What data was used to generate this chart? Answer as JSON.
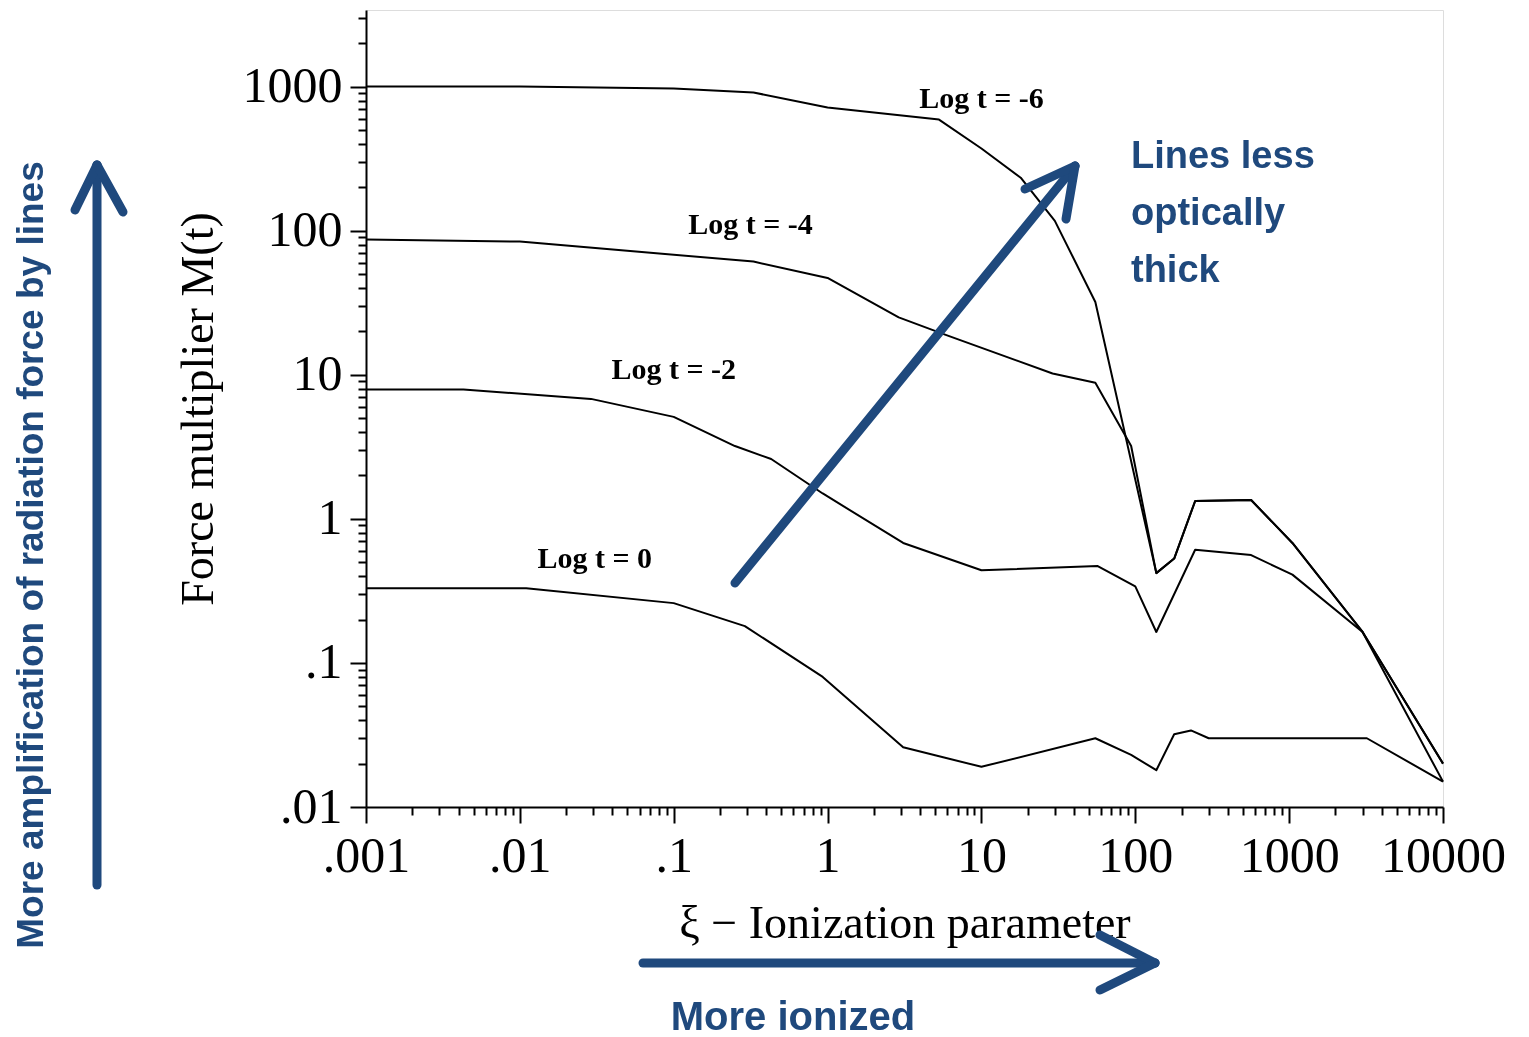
{
  "chart_data": {
    "type": "line",
    "xlabel": "ξ − Ionization parameter",
    "ylabel": "Force multiplier M(t)",
    "log": "xy",
    "marker": "none",
    "line_style": "solid",
    "xlim": [
      0.001,
      10000
    ],
    "ylim": [
      0.01,
      3400
    ],
    "xticks": [
      {
        "value": 0.001,
        "label": ".001"
      },
      {
        "value": 0.01,
        "label": ".01"
      },
      {
        "value": 0.1,
        "label": ".1"
      },
      1,
      10,
      100,
      1000,
      10000,
      {
        "value": 0.002,
        "label": null
      },
      {
        "value": 0.003,
        "label": null
      },
      {
        "value": 0.004,
        "label": null
      },
      {
        "value": 0.005,
        "label": null
      },
      {
        "value": 0.006,
        "label": null
      },
      {
        "value": 0.007,
        "label": null
      },
      {
        "value": 0.008,
        "label": null
      },
      {
        "value": 0.009,
        "label": null
      },
      {
        "value": 0.02,
        "label": null
      },
      {
        "value": 0.03,
        "label": null
      },
      {
        "value": 0.04,
        "label": null
      },
      {
        "value": 0.05,
        "label": null
      },
      {
        "value": 0.06,
        "label": null
      },
      {
        "value": 0.07,
        "label": null
      },
      {
        "value": 0.08,
        "label": null
      },
      {
        "value": 0.09,
        "label": null
      },
      {
        "value": 0.2,
        "label": null
      },
      {
        "value": 0.3,
        "label": null
      },
      {
        "value": 0.4,
        "label": null
      },
      {
        "value": 0.5,
        "label": null
      },
      {
        "value": 0.6,
        "label": null
      },
      {
        "value": 0.7,
        "label": null
      },
      {
        "value": 0.8,
        "label": null
      },
      {
        "value": 0.9,
        "label": null
      },
      {
        "value": 2,
        "label": null
      },
      {
        "value": 3,
        "label": null
      },
      {
        "value": 4,
        "label": null
      },
      {
        "value": 5,
        "label": null
      },
      {
        "value": 6,
        "label": null
      },
      {
        "value": 7,
        "label": null
      },
      {
        "value": 8,
        "label": null
      },
      {
        "value": 9,
        "label": null
      },
      {
        "value": 20,
        "label": null
      },
      {
        "value": 30,
        "label": null
      },
      {
        "value": 40,
        "label": null
      },
      {
        "value": 50,
        "label": null
      },
      {
        "value": 60,
        "label": null
      },
      {
        "value": 70,
        "label": null
      },
      {
        "value": 80,
        "label": null
      },
      {
        "value": 90,
        "label": null
      },
      {
        "value": 200,
        "label": null
      },
      {
        "value": 300,
        "label": null
      },
      {
        "value": 400,
        "label": null
      },
      {
        "value": 500,
        "label": null
      },
      {
        "value": 600,
        "label": null
      },
      {
        "value": 700,
        "label": null
      },
      {
        "value": 800,
        "label": null
      },
      {
        "value": 900,
        "label": null
      },
      {
        "value": 2000,
        "label": null
      },
      {
        "value": 3000,
        "label": null
      },
      {
        "value": 4000,
        "label": null
      },
      {
        "value": 5000,
        "label": null
      },
      {
        "value": 6000,
        "label": null
      },
      {
        "value": 7000,
        "label": null
      },
      {
        "value": 8000,
        "label": null
      },
      {
        "value": 9000,
        "label": null
      }
    ],
    "yticks": [
      {
        "value": 0.01,
        "label": ".01"
      },
      {
        "value": 0.1,
        "label": ".1"
      },
      1,
      10,
      100,
      1000,
      {
        "value": 0.02,
        "label": null
      },
      {
        "value": 0.03,
        "label": null
      },
      {
        "value": 0.04,
        "label": null
      },
      {
        "value": 0.05,
        "label": null
      },
      {
        "value": 0.06,
        "label": null
      },
      {
        "value": 0.07,
        "label": null
      },
      {
        "value": 0.08,
        "label": null
      },
      {
        "value": 0.09,
        "label": null
      },
      {
        "value": 0.2,
        "label": null
      },
      {
        "value": 0.3,
        "label": null
      },
      {
        "value": 0.4,
        "label": null
      },
      {
        "value": 0.5,
        "label": null
      },
      {
        "value": 0.6,
        "label": null
      },
      {
        "value": 0.7,
        "label": null
      },
      {
        "value": 0.8,
        "label": null
      },
      {
        "value": 0.9,
        "label": null
      },
      {
        "value": 2,
        "label": null
      },
      {
        "value": 3,
        "label": null
      },
      {
        "value": 4,
        "label": null
      },
      {
        "value": 5,
        "label": null
      },
      {
        "value": 6,
        "label": null
      },
      {
        "value": 7,
        "label": null
      },
      {
        "value": 8,
        "label": null
      },
      {
        "value": 9,
        "label": null
      },
      {
        "value": 20,
        "label": null
      },
      {
        "value": 30,
        "label": null
      },
      {
        "value": 40,
        "label": null
      },
      {
        "value": 50,
        "label": null
      },
      {
        "value": 60,
        "label": null
      },
      {
        "value": 70,
        "label": null
      },
      {
        "value": 80,
        "label": null
      },
      {
        "value": 90,
        "label": null
      },
      {
        "value": 200,
        "label": null
      },
      {
        "value": 300,
        "label": null
      },
      {
        "value": 400,
        "label": null
      },
      {
        "value": 500,
        "label": null
      },
      {
        "value": 600,
        "label": null
      },
      {
        "value": 700,
        "label": null
      },
      {
        "value": 800,
        "label": null
      },
      {
        "value": 900,
        "label": null
      },
      {
        "value": 2000,
        "label": null
      },
      {
        "value": 3000,
        "label": null
      }
    ],
    "series": [
      {
        "name": "Log t = -6",
        "color": "#000000",
        "x": [
          0.001,
          0.01,
          0.1,
          0.33,
          1,
          5.3,
          10,
          18,
          30,
          55,
          137,
          179,
          245,
          566,
          1050,
          3000,
          10000
        ],
        "values": [
          1000,
          1000,
          970,
          910,
          715,
          590,
          372,
          233,
          117,
          32,
          0.42,
          0.53,
          1.33,
          1.35,
          0.68,
          0.164,
          0.02
        ]
      },
      {
        "name": "Log t = -4",
        "color": "#000000",
        "x": [
          0.001,
          0.01,
          0.33,
          1,
          2.9,
          5.8,
          29,
          55,
          94,
          137,
          179,
          245,
          566,
          1050,
          3000,
          10000
        ],
        "values": [
          87,
          84,
          61,
          47,
          25,
          19,
          10.2,
          8.8,
          3.2,
          0.42,
          0.53,
          1.33,
          1.35,
          0.68,
          0.164,
          0.02
        ]
      },
      {
        "name": "Log t = -2",
        "color": "#000000",
        "x": [
          0.001,
          0.0043,
          0.029,
          0.1,
          0.25,
          0.43,
          0.93,
          3.1,
          10,
          57,
          100,
          137,
          245,
          566,
          1050,
          3000,
          10000
        ],
        "values": [
          7.9,
          7.9,
          6.8,
          5.1,
          3.2,
          2.6,
          1.5,
          0.68,
          0.44,
          0.47,
          0.34,
          0.164,
          0.61,
          0.56,
          0.41,
          0.164,
          0.015
        ]
      },
      {
        "name": "Log t = 0",
        "color": "#000000",
        "x": [
          0.001,
          0.011,
          0.1,
          0.29,
          0.93,
          3.1,
          10,
          55,
          94,
          137,
          179,
          230,
          300,
          3200,
          10000
        ],
        "values": [
          0.33,
          0.33,
          0.26,
          0.18,
          0.08,
          0.026,
          0.019,
          0.03,
          0.023,
          0.018,
          0.032,
          0.034,
          0.03,
          0.03,
          0.015
        ]
      }
    ],
    "annotations": [
      "Lines less optically thick",
      "More ionized",
      "More amplification of radiation force by lines"
    ]
  }
}
